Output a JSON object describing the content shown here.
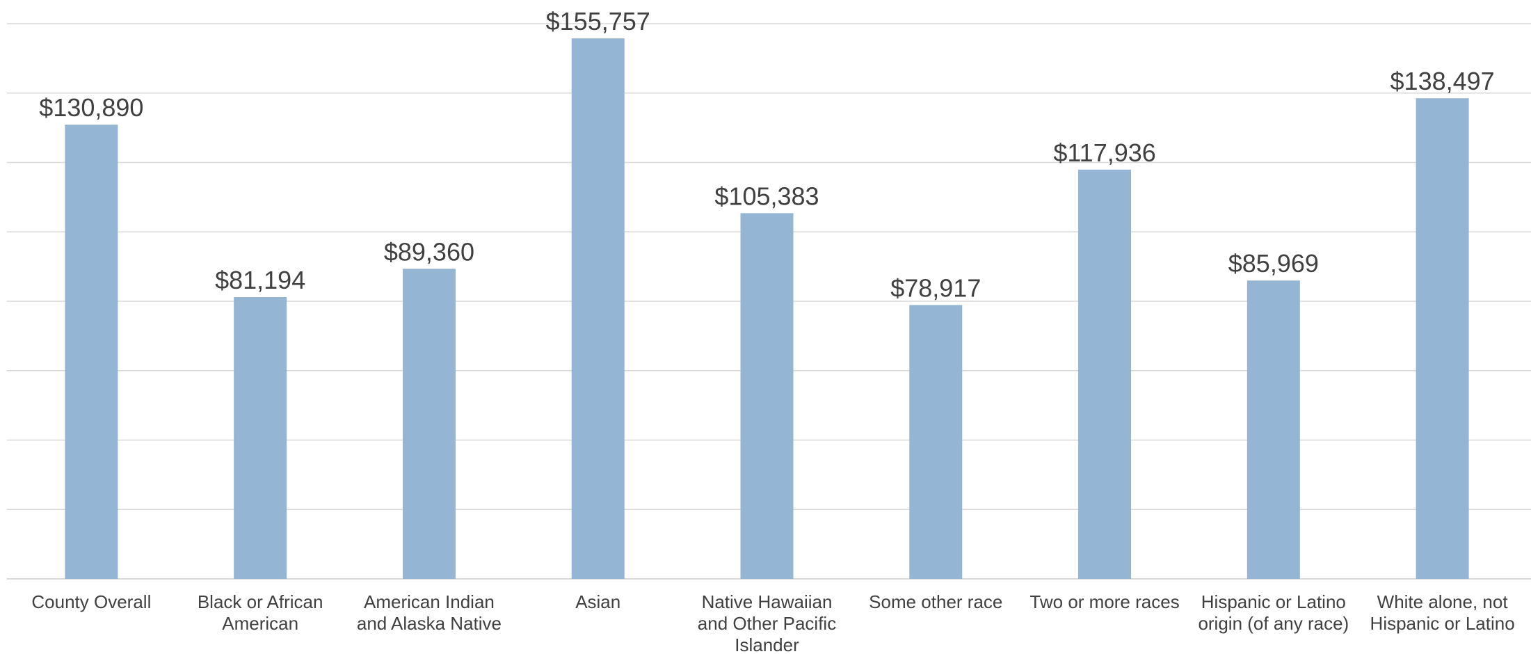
{
  "chart_data": {
    "type": "bar",
    "categories": [
      [
        "County Overall"
      ],
      [
        "Black or African",
        "American"
      ],
      [
        "American Indian",
        "and Alaska Native"
      ],
      [
        "Asian"
      ],
      [
        "Native Hawaiian",
        "and Other Pacific",
        "Islander"
      ],
      [
        "Some other race"
      ],
      [
        "Two or more races"
      ],
      [
        "Hispanic or Latino",
        "origin (of any race)"
      ],
      [
        "White alone, not",
        "Hispanic or Latino"
      ]
    ],
    "values": [
      130890,
      81194,
      89360,
      155757,
      105383,
      78917,
      117936,
      85969,
      138497
    ],
    "value_labels": [
      "$130,890",
      "$81,194",
      "$89,360",
      "$155,757",
      "$105,383",
      "$78,917",
      "$117,936",
      "$85,969",
      "$138,497"
    ],
    "ylim": [
      0,
      160000
    ],
    "ytick_step": 20000,
    "grid": true,
    "bar_color": "#94b5d3",
    "text_color": "#404040",
    "grid_color": "#d9d9d9"
  }
}
